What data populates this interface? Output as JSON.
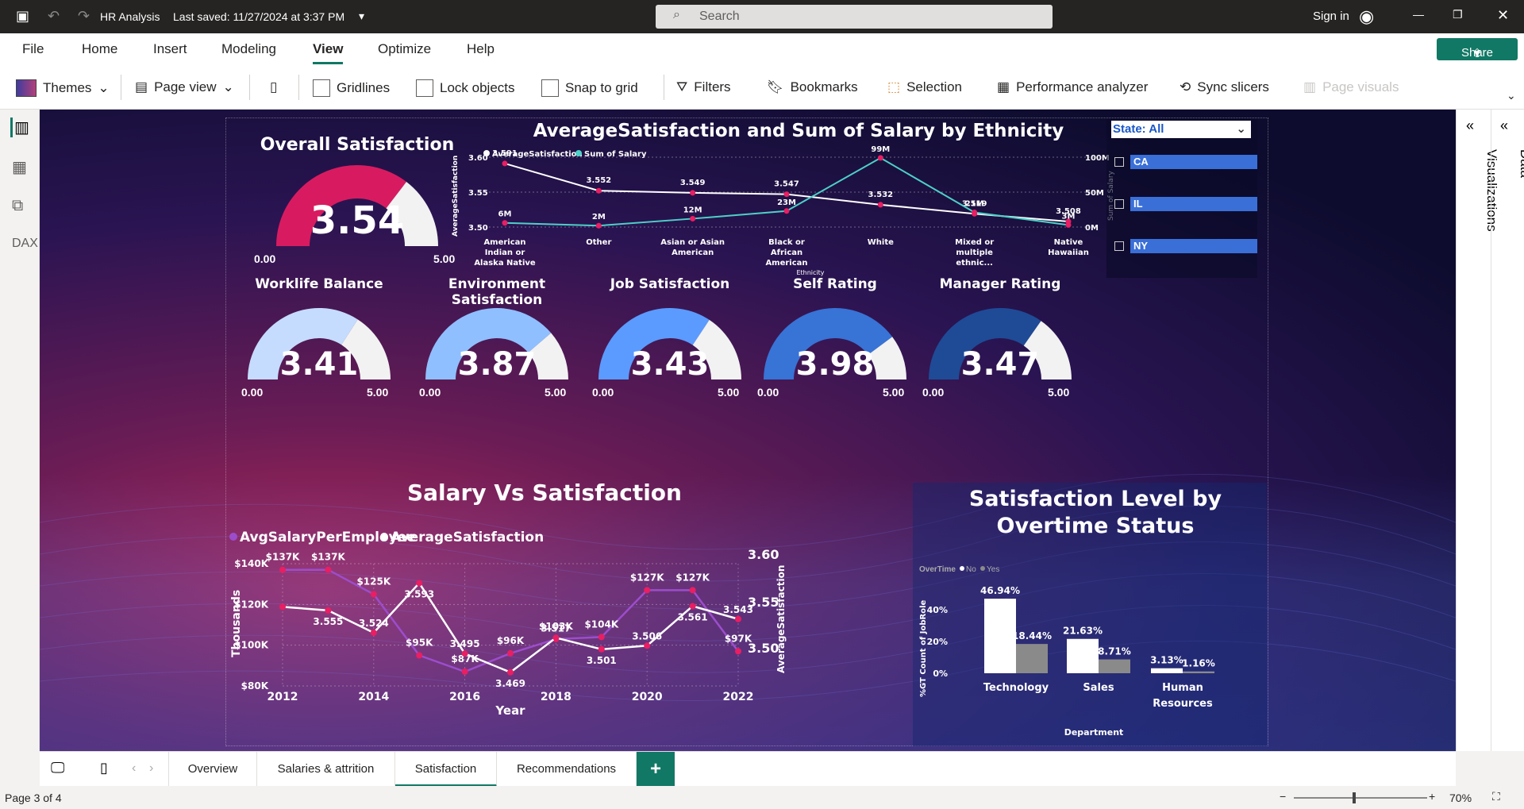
{
  "app": {
    "title": "HR Analysis",
    "saved": "Last saved: 11/27/2024 at 3:37 PM",
    "search_placeholder": "Search",
    "sign_in": "Sign in",
    "share": "Share"
  },
  "menu": [
    "File",
    "Home",
    "Insert",
    "Modeling",
    "View",
    "Optimize",
    "Help"
  ],
  "toolbar": {
    "themes": "Themes",
    "page_view": "Page view",
    "gridlines": "Gridlines",
    "lock_objects": "Lock objects",
    "snap_to_grid": "Snap to grid",
    "filters": "Filters",
    "bookmarks": "Bookmarks",
    "selection": "Selection",
    "performance_analyzer": "Performance analyzer",
    "sync_slicers": "Sync slicers",
    "page_visuals": "Page visuals"
  },
  "panes": {
    "visualizations": "Visualizations",
    "data": "Data"
  },
  "overall": {
    "title": "Overall Satisfaction",
    "value": "3.54",
    "min": "0.00",
    "max": "5.00",
    "fraction": 0.708,
    "color": "#d81b60"
  },
  "gauges": [
    {
      "title": "Worklife Balance",
      "value": "3.41",
      "min": "0.00",
      "max": "5.00",
      "fraction": 0.682,
      "color": "#c5dcff"
    },
    {
      "title": "Environment Satisfaction",
      "value": "3.87",
      "min": "0.00",
      "max": "5.00",
      "fraction": 0.774,
      "color": "#8fbfff"
    },
    {
      "title": "Job Satisfaction",
      "value": "3.43",
      "min": "0.00",
      "max": "5.00",
      "fraction": 0.686,
      "color": "#5b9bff"
    },
    {
      "title": "Self Rating",
      "value": "3.98",
      "min": "0.00",
      "max": "5.00",
      "fraction": 0.796,
      "color": "#3873d6"
    },
    {
      "title": "Manager Rating",
      "value": "3.47",
      "min": "0.00",
      "max": "5.00",
      "fraction": 0.694,
      "color": "#1f4a96"
    }
  ],
  "slicer": {
    "header": "State: All",
    "items": [
      "CA",
      "IL",
      "NY"
    ]
  },
  "tabs": [
    "Overview",
    "Salaries & attrition",
    "Satisfaction",
    "Recommendations"
  ],
  "status": {
    "page": "Page 3 of 4",
    "zoom": "70%"
  },
  "chart_data": [
    {
      "type": "line",
      "title": "AverageSatisfaction and Sum of Salary by Ethnicity",
      "xlabel": "Ethnicity",
      "ylabel": "AverageSatisfaction",
      "y2label": "Sum of Salary",
      "categories": [
        "American Indian or Alaska Native",
        "Other",
        "Asian or Asian American",
        "Black or African American",
        "White",
        "Mixed or multiple ethnic...",
        "Native Hawaiian"
      ],
      "yticks": [
        "3.60",
        "3.55",
        "3.50"
      ],
      "y2ticks": [
        "100M",
        "50M",
        "0M"
      ],
      "series": [
        {
          "name": "AverageSatisfaction",
          "color": "#ffffff",
          "values": [
            3.591,
            3.552,
            3.549,
            3.547,
            3.532,
            3.519,
            3.508
          ],
          "labels": [
            "3.591",
            "3.552",
            "3.549",
            "3.547",
            "3.532",
            "3.519",
            "3.508"
          ]
        },
        {
          "name": "Sum of Salary",
          "color": "#4dd0c8",
          "values": [
            6,
            2,
            12,
            23,
            99,
            21,
            3
          ],
          "labels": [
            "6M",
            "2M",
            "12M",
            "23M",
            "99M",
            "21M",
            "3M"
          ]
        }
      ],
      "ylim": [
        3.5,
        3.6
      ],
      "y2lim": [
        0,
        100
      ]
    },
    {
      "type": "line",
      "title": "Salary Vs Satisfaction",
      "xlabel": "Year",
      "ylabel": "Thousands",
      "y2label": "AverageSatisfaction",
      "x": [
        2012,
        2013,
        2014,
        2015,
        2016,
        2017,
        2018,
        2019,
        2020,
        2021,
        2022
      ],
      "xticks": [
        "2012",
        "2014",
        "2016",
        "2018",
        "2020",
        "2022"
      ],
      "yticks": [
        "$140K",
        "$120K",
        "$100K",
        "$80K"
      ],
      "y2ticks": [
        "3.60",
        "3.55",
        "3.50"
      ],
      "series": [
        {
          "name": "AvgSalaryPerEmployee",
          "color": "#9c4dcc",
          "values": [
            137,
            137,
            125,
            95,
            87,
            96,
            103,
            104,
            127,
            127,
            97
          ],
          "labels": [
            "$137K",
            "$137K",
            "$125K",
            "$95K",
            "$87K",
            "$96K",
            "$103K",
            "$104K",
            "$127K",
            "$127K",
            "$97K"
          ]
        },
        {
          "name": "AverageSatisfaction",
          "color": "#ffffff",
          "values": [
            3.56,
            3.555,
            3.524,
            3.593,
            3.495,
            3.469,
            3.517,
            3.501,
            3.506,
            3.561,
            3.543
          ],
          "labels": [
            "",
            "3.555",
            "3.524",
            "3.593",
            "3.495",
            "3.469",
            "3.517",
            "3.501",
            "3.506",
            "3.561",
            "3.543"
          ]
        }
      ],
      "ylim": [
        80,
        140
      ],
      "y2lim": [
        3.45,
        3.62
      ]
    },
    {
      "type": "bar",
      "title": "Satisfaction Level by Overtime Status",
      "xlabel": "Department",
      "ylabel": "%GT Count of JobRole",
      "legend_title": "OverTime",
      "categories": [
        "Technology",
        "Sales",
        "Human Resources"
      ],
      "yticks": [
        "40%",
        "20%",
        "0%"
      ],
      "series": [
        {
          "name": "No",
          "color": "#ffffff",
          "values": [
            46.94,
            21.63,
            3.13
          ],
          "labels": [
            "46.94%",
            "21.63%",
            "3.13%"
          ]
        },
        {
          "name": "Yes",
          "color": "#8a8a8a",
          "values": [
            18.44,
            8.71,
            1.16
          ],
          "labels": [
            "18.44%",
            "8.71%",
            "1.16%"
          ]
        }
      ],
      "ylim": [
        0,
        50
      ]
    }
  ]
}
